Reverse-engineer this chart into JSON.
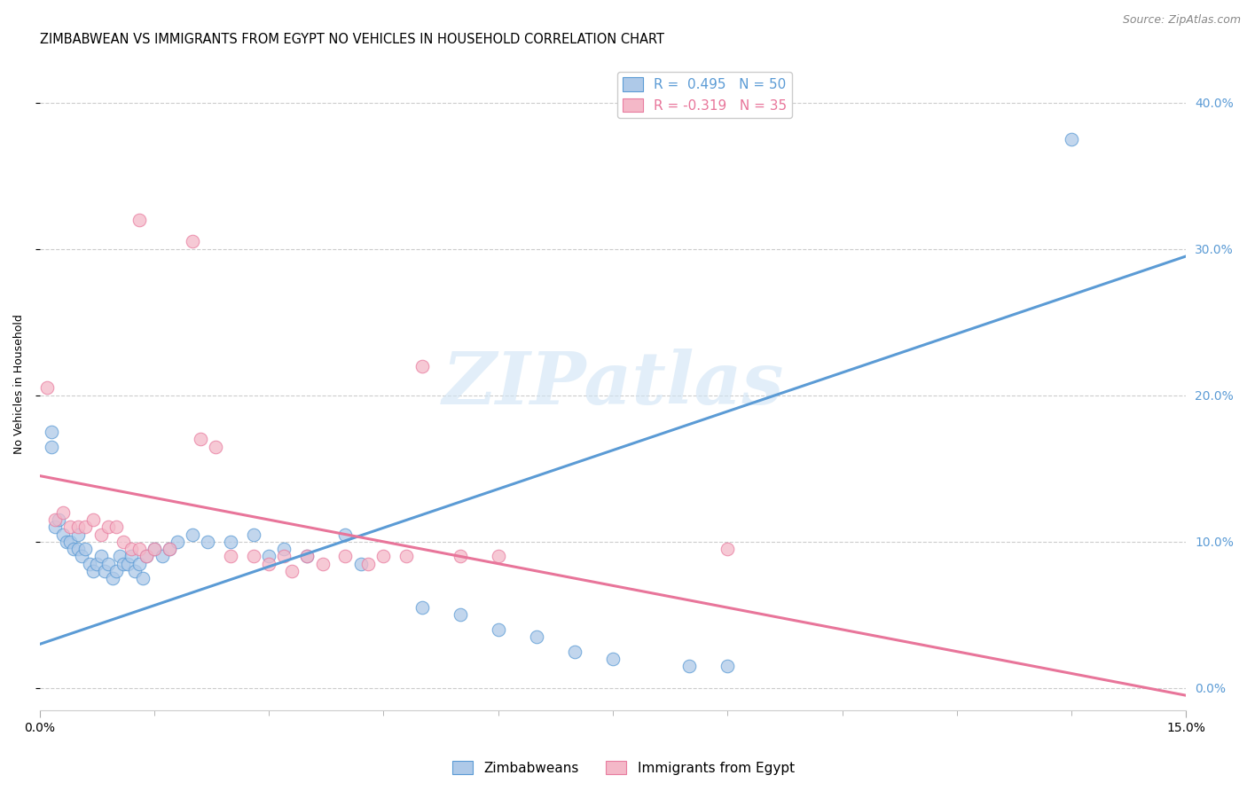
{
  "title": "ZIMBABWEAN VS IMMIGRANTS FROM EGYPT NO VEHICLES IN HOUSEHOLD CORRELATION CHART",
  "source": "Source: ZipAtlas.com",
  "ylabel": "No Vehicles in Household",
  "xlim": [
    0.0,
    15.0
  ],
  "ylim": [
    -1.5,
    43.0
  ],
  "yticks": [
    0.0,
    10.0,
    20.0,
    30.0,
    40.0
  ],
  "ytick_labels": [
    "0.0%",
    "10.0%",
    "20.0%",
    "30.0%",
    "40.0%"
  ],
  "xtick_labels": [
    "0.0%",
    "15.0%"
  ],
  "xtick_positions": [
    0.0,
    15.0
  ],
  "watermark_text": "ZIPatlas",
  "blue_color": "#aec9e8",
  "pink_color": "#f4b8c8",
  "blue_edge_color": "#5b9bd5",
  "pink_edge_color": "#e87da0",
  "blue_line_color": "#5b9bd5",
  "pink_line_color": "#e8759a",
  "tick_label_color": "#5b9bd5",
  "blue_scatter": [
    [
      0.15,
      16.5
    ],
    [
      0.15,
      17.5
    ],
    [
      0.2,
      11.0
    ],
    [
      0.25,
      11.5
    ],
    [
      0.3,
      10.5
    ],
    [
      0.35,
      10.0
    ],
    [
      0.4,
      10.0
    ],
    [
      0.45,
      9.5
    ],
    [
      0.5,
      9.5
    ],
    [
      0.5,
      10.5
    ],
    [
      0.55,
      9.0
    ],
    [
      0.6,
      9.5
    ],
    [
      0.65,
      8.5
    ],
    [
      0.7,
      8.0
    ],
    [
      0.75,
      8.5
    ],
    [
      0.8,
      9.0
    ],
    [
      0.85,
      8.0
    ],
    [
      0.9,
      8.5
    ],
    [
      0.95,
      7.5
    ],
    [
      1.0,
      8.0
    ],
    [
      1.05,
      9.0
    ],
    [
      1.1,
      8.5
    ],
    [
      1.15,
      8.5
    ],
    [
      1.2,
      9.0
    ],
    [
      1.25,
      8.0
    ],
    [
      1.3,
      8.5
    ],
    [
      1.35,
      7.5
    ],
    [
      1.4,
      9.0
    ],
    [
      1.5,
      9.5
    ],
    [
      1.6,
      9.0
    ],
    [
      1.7,
      9.5
    ],
    [
      1.8,
      10.0
    ],
    [
      2.0,
      10.5
    ],
    [
      2.2,
      10.0
    ],
    [
      2.5,
      10.0
    ],
    [
      2.8,
      10.5
    ],
    [
      3.0,
      9.0
    ],
    [
      3.2,
      9.5
    ],
    [
      3.5,
      9.0
    ],
    [
      4.0,
      10.5
    ],
    [
      4.2,
      8.5
    ],
    [
      5.0,
      5.5
    ],
    [
      5.5,
      5.0
    ],
    [
      6.0,
      4.0
    ],
    [
      6.5,
      3.5
    ],
    [
      7.0,
      2.5
    ],
    [
      7.5,
      2.0
    ],
    [
      8.5,
      1.5
    ],
    [
      9.0,
      1.5
    ],
    [
      13.5,
      37.5
    ]
  ],
  "pink_scatter": [
    [
      0.1,
      20.5
    ],
    [
      0.2,
      11.5
    ],
    [
      0.3,
      12.0
    ],
    [
      0.4,
      11.0
    ],
    [
      0.5,
      11.0
    ],
    [
      0.6,
      11.0
    ],
    [
      0.7,
      11.5
    ],
    [
      0.8,
      10.5
    ],
    [
      0.9,
      11.0
    ],
    [
      1.0,
      11.0
    ],
    [
      1.1,
      10.0
    ],
    [
      1.2,
      9.5
    ],
    [
      1.3,
      9.5
    ],
    [
      1.4,
      9.0
    ],
    [
      1.5,
      9.5
    ],
    [
      1.7,
      9.5
    ],
    [
      2.0,
      30.5
    ],
    [
      2.1,
      17.0
    ],
    [
      2.3,
      16.5
    ],
    [
      2.5,
      9.0
    ],
    [
      2.8,
      9.0
    ],
    [
      3.0,
      8.5
    ],
    [
      3.2,
      9.0
    ],
    [
      3.3,
      8.0
    ],
    [
      3.5,
      9.0
    ],
    [
      3.7,
      8.5
    ],
    [
      4.0,
      9.0
    ],
    [
      4.3,
      8.5
    ],
    [
      4.5,
      9.0
    ],
    [
      4.8,
      9.0
    ],
    [
      5.0,
      22.0
    ],
    [
      5.5,
      9.0
    ],
    [
      6.0,
      9.0
    ],
    [
      9.0,
      9.5
    ],
    [
      1.3,
      32.0
    ]
  ],
  "blue_trend_x": [
    0.0,
    15.0
  ],
  "blue_trend_y": [
    3.0,
    29.5
  ],
  "pink_trend_x": [
    0.0,
    15.0
  ],
  "pink_trend_y": [
    14.5,
    -0.5
  ],
  "background_color": "#ffffff",
  "grid_color": "#cccccc",
  "title_fontsize": 10.5,
  "source_fontsize": 9,
  "axis_label_fontsize": 9,
  "tick_fontsize": 10,
  "legend_fontsize": 11,
  "scatter_size": 110,
  "scatter_alpha": 0.75,
  "scatter_linewidth": 0.8
}
